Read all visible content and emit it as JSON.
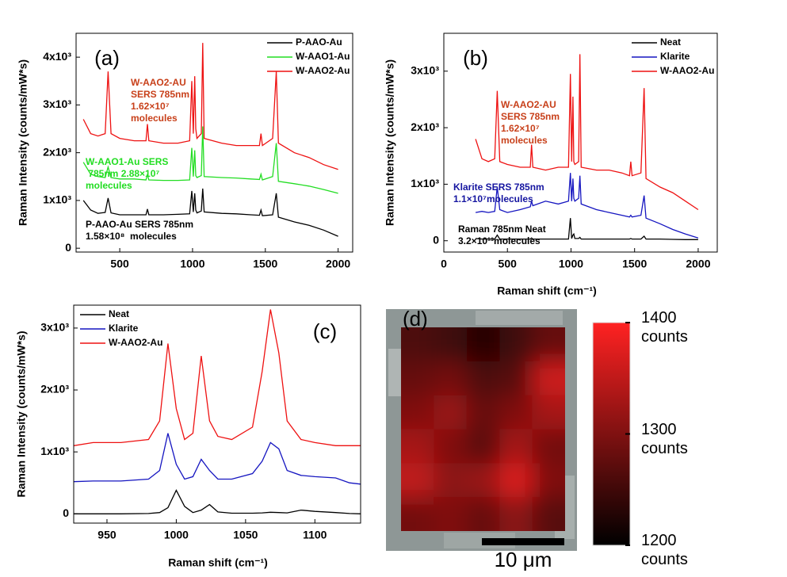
{
  "chart_data": [
    {
      "type": "line",
      "panel_label": "(a)",
      "y_label": "Raman Intensity (counts/mW*s)",
      "xlim": [
        200,
        2100
      ],
      "ylim": [
        -80,
        4500
      ],
      "xticks": [
        500,
        1000,
        1500,
        2000
      ],
      "yticks": [
        0,
        {
          "value": 1000,
          "label": "1x10³"
        },
        {
          "value": 2000,
          "label": "2x10³"
        },
        {
          "value": 3000,
          "label": "3x10³"
        },
        {
          "value": 4000,
          "label": "4x10³"
        }
      ],
      "legend": "upper right",
      "x": [
        250,
        300,
        350,
        400,
        420,
        440,
        500,
        600,
        680,
        690,
        700,
        800,
        900,
        980,
        995,
        1005,
        1015,
        1022,
        1030,
        1060,
        1070,
        1080,
        1200,
        1300,
        1400,
        1460,
        1470,
        1480,
        1550,
        1575,
        1590,
        1700,
        1800,
        1900,
        2000
      ],
      "series": [
        {
          "name": "P-AAO-Au",
          "color": "#000000",
          "values": [
            1000,
            800,
            730,
            750,
            1050,
            740,
            700,
            700,
            700,
            820,
            700,
            700,
            710,
            720,
            1200,
            760,
            1150,
            800,
            740,
            780,
            1250,
            760,
            730,
            720,
            700,
            690,
            800,
            680,
            700,
            1150,
            650,
            550,
            480,
            380,
            250
          ]
        },
        {
          "name": "W-AAO1-Au",
          "color": "#22dd22",
          "values": [
            1800,
            1550,
            1500,
            1480,
            1700,
            1480,
            1450,
            1450,
            1430,
            1550,
            1430,
            1420,
            1420,
            1430,
            2100,
            1500,
            2050,
            1520,
            1480,
            1520,
            2550,
            1500,
            1480,
            1470,
            1450,
            1440,
            1550,
            1430,
            1500,
            2200,
            1400,
            1350,
            1300,
            1230,
            1150
          ]
        },
        {
          "name": "W-AAO2-Au",
          "color": "#ee1111",
          "values": [
            2700,
            2400,
            2350,
            2400,
            3700,
            2400,
            2300,
            2250,
            2250,
            2600,
            2250,
            2200,
            2200,
            2250,
            3500,
            2400,
            3600,
            2500,
            2300,
            2400,
            4300,
            2300,
            2200,
            2150,
            2150,
            2150,
            2400,
            2150,
            2300,
            3700,
            2200,
            2000,
            1900,
            1750,
            1650
          ]
        }
      ],
      "annotations": [
        {
          "color": "#c8401a",
          "lines": [
            "W-AAO2-AU",
            "SERS 785nm",
            "1.62×10⁷",
            "molecules"
          ]
        },
        {
          "color": "#22dd22",
          "lines": [
            "W-AAO1-Au SERS",
            " 785nm 2.88×10⁷",
            "molecules"
          ]
        },
        {
          "color": "#000000",
          "lines": [
            "P-AAO-Au SERS 785nm",
            "1.58×10⁸  molecules"
          ]
        }
      ]
    },
    {
      "type": "line",
      "panel_label": "(b)",
      "y_label": "Raman Intensity (counts/mW*s)",
      "x_label": "Raman shift (cm⁻¹)",
      "xlim": [
        0,
        2150
      ],
      "ylim": [
        -200,
        3670
      ],
      "xticks": [
        0,
        500,
        1000,
        1500,
        2000
      ],
      "yticks": [
        0,
        {
          "value": 1000,
          "label": "1x10³"
        },
        {
          "value": 2000,
          "label": "2x10³"
        },
        {
          "value": 3000,
          "label": "3x10³"
        }
      ],
      "legend": "upper right",
      "x": [
        250,
        300,
        350,
        400,
        420,
        440,
        500,
        600,
        680,
        690,
        700,
        800,
        900,
        980,
        995,
        1005,
        1015,
        1022,
        1030,
        1060,
        1070,
        1080,
        1200,
        1300,
        1400,
        1460,
        1470,
        1480,
        1550,
        1575,
        1590,
        1700,
        1800,
        1900,
        2000
      ],
      "series": [
        {
          "name": "Neat",
          "color": "#000000",
          "values": [
            40,
            30,
            30,
            30,
            100,
            30,
            30,
            30,
            30,
            50,
            30,
            30,
            30,
            30,
            400,
            40,
            100,
            120,
            40,
            40,
            60,
            30,
            30,
            30,
            30,
            30,
            40,
            30,
            30,
            80,
            30,
            30,
            25,
            20,
            20
          ]
        },
        {
          "name": "Klarite",
          "color": "#1515c0",
          "values": [
            500,
            520,
            500,
            520,
            950,
            550,
            500,
            550,
            600,
            700,
            620,
            700,
            650,
            700,
            1200,
            700,
            1100,
            750,
            700,
            750,
            1150,
            650,
            550,
            500,
            450,
            420,
            450,
            420,
            450,
            800,
            400,
            300,
            200,
            120,
            50
          ]
        },
        {
          "name": "W-AAO2-Au",
          "color": "#ee1111",
          "values": [
            1800,
            1450,
            1400,
            1450,
            2650,
            1400,
            1350,
            1300,
            1300,
            1700,
            1300,
            1250,
            1300,
            1300,
            2950,
            1400,
            2550,
            1400,
            1350,
            1400,
            3300,
            1300,
            1250,
            1250,
            1200,
            1150,
            1400,
            1150,
            1200,
            2700,
            1100,
            950,
            850,
            700,
            550
          ]
        }
      ],
      "annotations": [
        {
          "color": "#c8401a",
          "lines": [
            "W-AAO2-AU",
            "SERS 785nm",
            "1.62×10⁷",
            "molecules"
          ]
        },
        {
          "color": "#1515a0",
          "lines": [
            "Klarite SERS 785nm",
            "1.1×10⁷molecules"
          ]
        },
        {
          "color": "#000000",
          "lines": [
            "Raman 785nm Neat",
            "3.2×10¹³molecules"
          ]
        }
      ]
    },
    {
      "type": "line",
      "panel_label": "(c)",
      "y_label": "Raman Intensity (counts/mW*s)",
      "x_label": "Raman shift (cm⁻¹)",
      "xlim": [
        926,
        1133
      ],
      "ylim": [
        -150,
        3370
      ],
      "xticks": [
        950,
        1000,
        1050,
        1100
      ],
      "yticks": [
        0,
        {
          "value": 1000,
          "label": "1x10³"
        },
        {
          "value": 2000,
          "label": "2x10³"
        },
        {
          "value": 3000,
          "label": "3x10³"
        }
      ],
      "legend": "upper left",
      "x": [
        926,
        940,
        960,
        980,
        988,
        994,
        1000,
        1006,
        1012,
        1018,
        1024,
        1030,
        1040,
        1055,
        1062,
        1068,
        1074,
        1080,
        1090,
        1100,
        1115,
        1125,
        1133
      ],
      "series": [
        {
          "name": "Neat",
          "color": "#000000",
          "values": [
            0,
            0,
            0,
            5,
            20,
            100,
            380,
            120,
            20,
            60,
            150,
            30,
            10,
            10,
            15,
            25,
            20,
            15,
            60,
            40,
            20,
            5,
            0
          ]
        },
        {
          "name": "Klarite",
          "color": "#1515c0",
          "values": [
            520,
            530,
            530,
            560,
            700,
            1300,
            800,
            560,
            600,
            880,
            700,
            560,
            560,
            650,
            850,
            1150,
            1050,
            700,
            620,
            600,
            580,
            500,
            480
          ]
        },
        {
          "name": "W-AAO2-Au",
          "color": "#ee1111",
          "values": [
            1100,
            1150,
            1150,
            1200,
            1500,
            2750,
            1700,
            1200,
            1300,
            2550,
            1500,
            1250,
            1200,
            1400,
            2300,
            3300,
            2600,
            1500,
            1200,
            1150,
            1100,
            1100,
            1100
          ]
        }
      ],
      "annotations": []
    },
    {
      "type": "heatmap",
      "panel_label": "(d)",
      "scale_bar_label": "10 μm",
      "zlim": [
        1200,
        1400
      ],
      "colormap": [
        "#000000",
        "#ff2222"
      ],
      "cticks": [
        {
          "value": 1200,
          "label": "1200 counts"
        },
        {
          "value": 1300,
          "label": "1300 counts"
        },
        {
          "value": 1400,
          "label": "1400 counts"
        }
      ],
      "values": [
        [
          1260,
          1250,
          1230,
          1250,
          1280
        ],
        [
          1280,
          1290,
          1260,
          1270,
          1360
        ],
        [
          1300,
          1320,
          1280,
          1300,
          1330
        ],
        [
          1330,
          1300,
          1270,
          1330,
          1290
        ],
        [
          1350,
          1310,
          1320,
          1370,
          1300
        ],
        [
          1290,
          1300,
          1280,
          1310,
          1270
        ]
      ]
    }
  ]
}
